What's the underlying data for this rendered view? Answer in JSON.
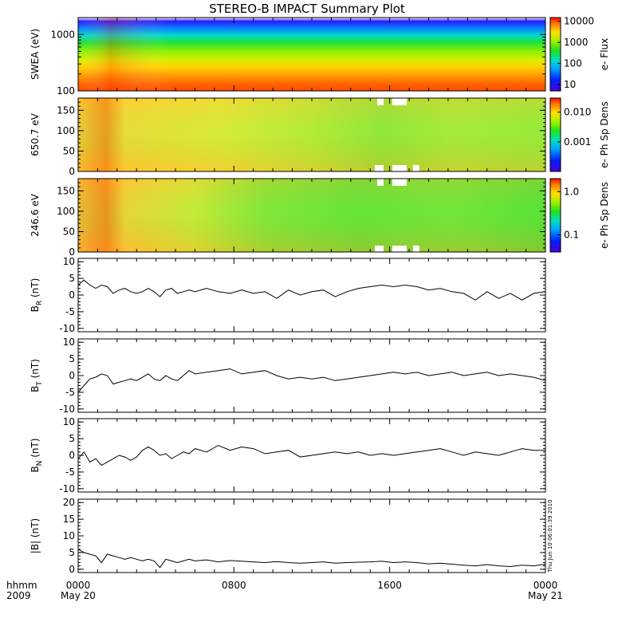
{
  "title": "STEREO-B IMPACT Summary Plot",
  "footer": {
    "line1": "hhmm",
    "line2": "2009"
  },
  "timestamp": "Thu Jun 10 06:01:39 2010",
  "x_axis": {
    "ticks": [
      {
        "hour": 0,
        "label": "0000",
        "sublabel": "May 20"
      },
      {
        "hour": 8,
        "label": "0800",
        "sublabel": ""
      },
      {
        "hour": 16,
        "label": "1600",
        "sublabel": ""
      },
      {
        "hour": 24,
        "label": "0000",
        "sublabel": "May 21"
      }
    ]
  },
  "chart_data": [
    {
      "type": "heatmap",
      "ylabel": "SWEA (eV)",
      "ylog": true,
      "ylim": [
        100,
        2000
      ],
      "yticks": [
        100,
        1000
      ],
      "ytick_labels": [
        "100",
        "1000"
      ],
      "colorbar": {
        "label": "e- Flux",
        "log": true,
        "range": [
          5,
          15000
        ],
        "ticks": [
          10,
          100,
          1000,
          10000
        ],
        "tick_labels": [
          "10",
          "100",
          "1000",
          "10000"
        ]
      }
    },
    {
      "type": "heatmap",
      "ylabel": "650.7 eV",
      "ylim": [
        0,
        180
      ],
      "yticks": [
        0,
        50,
        100,
        150
      ],
      "ytick_labels": [
        "0",
        "50",
        "100",
        "150"
      ],
      "colorbar": {
        "label": "e- Ph Sp Dens",
        "log": true,
        "range": [
          0.0001,
          0.03
        ],
        "ticks": [
          0.001,
          0.01
        ],
        "tick_labels": [
          "0.001",
          "0.010"
        ]
      }
    },
    {
      "type": "heatmap",
      "ylabel": "246.6 eV",
      "ylim": [
        0,
        180
      ],
      "yticks": [
        0,
        50,
        100,
        150
      ],
      "ytick_labels": [
        "0",
        "50",
        "100",
        "150"
      ],
      "colorbar": {
        "label": "e- Ph Sp Dens",
        "log": true,
        "range": [
          0.04,
          2.0
        ],
        "ticks": [
          0.1,
          1.0
        ],
        "tick_labels": [
          "0.1",
          "1.0"
        ]
      }
    },
    {
      "type": "line",
      "ylabel": "B_R (nT)",
      "ylim": [
        -11,
        11
      ],
      "yticks": [
        -10,
        -5,
        0,
        5,
        10
      ],
      "ytick_labels": [
        "-10",
        "-5",
        "0",
        "5",
        "10"
      ],
      "x_hours": [
        0,
        0.3,
        0.6,
        0.9,
        1.2,
        1.5,
        1.8,
        2.1,
        2.4,
        2.7,
        3.0,
        3.3,
        3.6,
        3.9,
        4.2,
        4.5,
        4.8,
        5.1,
        5.4,
        5.7,
        6.0,
        6.6,
        7.2,
        7.8,
        8.4,
        9.0,
        9.6,
        10.2,
        10.8,
        11.4,
        12.0,
        12.6,
        13.2,
        13.8,
        14.4,
        15.0,
        15.6,
        16.2,
        16.8,
        17.4,
        18.0,
        18.6,
        19.2,
        19.8,
        20.4,
        21.0,
        21.6,
        22.2,
        22.8,
        23.4,
        24.0
      ],
      "values": [
        3.0,
        4.5,
        3.0,
        2.0,
        3.0,
        2.5,
        0.5,
        1.5,
        2.0,
        1.0,
        0.5,
        1.0,
        2.0,
        1.0,
        -0.5,
        1.5,
        2.0,
        0.5,
        1.0,
        1.5,
        1.0,
        2.0,
        1.0,
        0.5,
        1.5,
        0.5,
        1.0,
        -1.0,
        1.5,
        0.0,
        1.0,
        1.5,
        -0.5,
        1.0,
        2.0,
        2.5,
        3.0,
        2.5,
        3.0,
        2.5,
        1.5,
        2.0,
        1.0,
        0.5,
        -1.5,
        1.0,
        -1.0,
        0.5,
        -1.5,
        0.5,
        1.0
      ]
    },
    {
      "type": "line",
      "ylabel": "B_T (nT)",
      "ylim": [
        -11,
        11
      ],
      "yticks": [
        -10,
        -5,
        0,
        5,
        10
      ],
      "ytick_labels": [
        "-10",
        "-5",
        "0",
        "5",
        "10"
      ],
      "x_hours": [
        0,
        0.3,
        0.6,
        0.9,
        1.2,
        1.5,
        1.8,
        2.1,
        2.4,
        2.7,
        3.0,
        3.3,
        3.6,
        3.9,
        4.2,
        4.5,
        4.8,
        5.1,
        5.4,
        5.7,
        6.0,
        6.6,
        7.2,
        7.8,
        8.4,
        9.0,
        9.6,
        10.2,
        10.8,
        11.4,
        12.0,
        12.6,
        13.2,
        13.8,
        14.4,
        15.0,
        15.6,
        16.2,
        16.8,
        17.4,
        18.0,
        18.6,
        19.2,
        19.8,
        20.4,
        21.0,
        21.6,
        22.2,
        22.8,
        23.4,
        24.0
      ],
      "values": [
        -5.0,
        -3.0,
        -1.0,
        -0.5,
        0.5,
        0.0,
        -2.5,
        -2.0,
        -1.5,
        -1.0,
        -1.5,
        -0.5,
        0.5,
        -1.0,
        -1.5,
        0.0,
        -1.0,
        -1.5,
        0.0,
        1.5,
        0.5,
        1.0,
        1.5,
        2.0,
        0.5,
        1.0,
        1.5,
        0.0,
        -1.0,
        -0.5,
        -1.0,
        -0.5,
        -1.5,
        -1.0,
        -0.5,
        0.0,
        0.5,
        1.0,
        0.5,
        1.0,
        0.0,
        0.5,
        1.0,
        0.0,
        0.5,
        1.0,
        0.0,
        0.5,
        0.0,
        -0.5,
        -1.5
      ]
    },
    {
      "type": "line",
      "ylabel": "B_N (nT)",
      "ylim": [
        -11,
        11
      ],
      "yticks": [
        -10,
        -5,
        0,
        5,
        10
      ],
      "ytick_labels": [
        "-10",
        "-5",
        "0",
        "5",
        "10"
      ],
      "x_hours": [
        0,
        0.3,
        0.6,
        0.9,
        1.2,
        1.5,
        1.8,
        2.1,
        2.4,
        2.7,
        3.0,
        3.3,
        3.6,
        3.9,
        4.2,
        4.5,
        4.8,
        5.1,
        5.4,
        5.7,
        6.0,
        6.6,
        7.2,
        7.8,
        8.4,
        9.0,
        9.6,
        10.2,
        10.8,
        11.4,
        12.0,
        12.6,
        13.2,
        13.8,
        14.4,
        15.0,
        15.6,
        16.2,
        16.8,
        17.4,
        18.0,
        18.6,
        19.2,
        19.8,
        20.4,
        21.0,
        21.6,
        22.2,
        22.8,
        23.4,
        24.0
      ],
      "values": [
        -1.0,
        1.0,
        -2.0,
        -1.0,
        -3.0,
        -2.0,
        -1.0,
        0.0,
        -0.5,
        -1.5,
        -0.5,
        1.5,
        2.5,
        1.5,
        0.0,
        0.5,
        -1.0,
        0.0,
        1.0,
        0.5,
        2.0,
        1.0,
        3.0,
        1.5,
        2.5,
        2.0,
        0.5,
        1.0,
        1.5,
        -0.5,
        0.0,
        0.5,
        1.0,
        0.5,
        1.0,
        0.0,
        0.5,
        0.0,
        0.5,
        1.0,
        1.5,
        2.0,
        1.0,
        0.0,
        1.0,
        0.5,
        0.0,
        1.0,
        2.0,
        1.5,
        1.5
      ]
    },
    {
      "type": "line",
      "ylabel": "|B| (nT)",
      "ylim": [
        -1,
        21
      ],
      "yticks": [
        0,
        5,
        10,
        15,
        20
      ],
      "ytick_labels": [
        "0",
        "5",
        "10",
        "15",
        "20"
      ],
      "x_hours": [
        0,
        0.3,
        0.6,
        0.9,
        1.2,
        1.5,
        1.8,
        2.1,
        2.4,
        2.7,
        3.0,
        3.3,
        3.6,
        3.9,
        4.2,
        4.5,
        4.8,
        5.1,
        5.4,
        5.7,
        6.0,
        6.6,
        7.2,
        7.8,
        8.4,
        9.0,
        9.6,
        10.2,
        10.8,
        11.4,
        12.0,
        12.6,
        13.2,
        13.8,
        14.4,
        15.0,
        15.6,
        16.2,
        16.8,
        17.4,
        18.0,
        18.6,
        19.2,
        19.8,
        20.4,
        21.0,
        21.6,
        22.2,
        22.8,
        23.4,
        24.0
      ],
      "values": [
        6.0,
        5.0,
        4.5,
        4.0,
        2.0,
        4.5,
        4.0,
        3.5,
        3.0,
        3.5,
        3.0,
        2.5,
        3.0,
        2.5,
        0.5,
        3.0,
        2.5,
        2.0,
        2.5,
        3.0,
        2.5,
        2.8,
        2.2,
        2.6,
        2.4,
        2.2,
        2.0,
        2.3,
        2.0,
        1.8,
        2.0,
        2.2,
        1.8,
        2.0,
        2.1,
        2.2,
        2.4,
        2.0,
        2.2,
        2.0,
        1.6,
        1.8,
        1.5,
        1.2,
        1.0,
        1.4,
        1.0,
        0.8,
        1.2,
        1.0,
        1.5
      ]
    }
  ]
}
